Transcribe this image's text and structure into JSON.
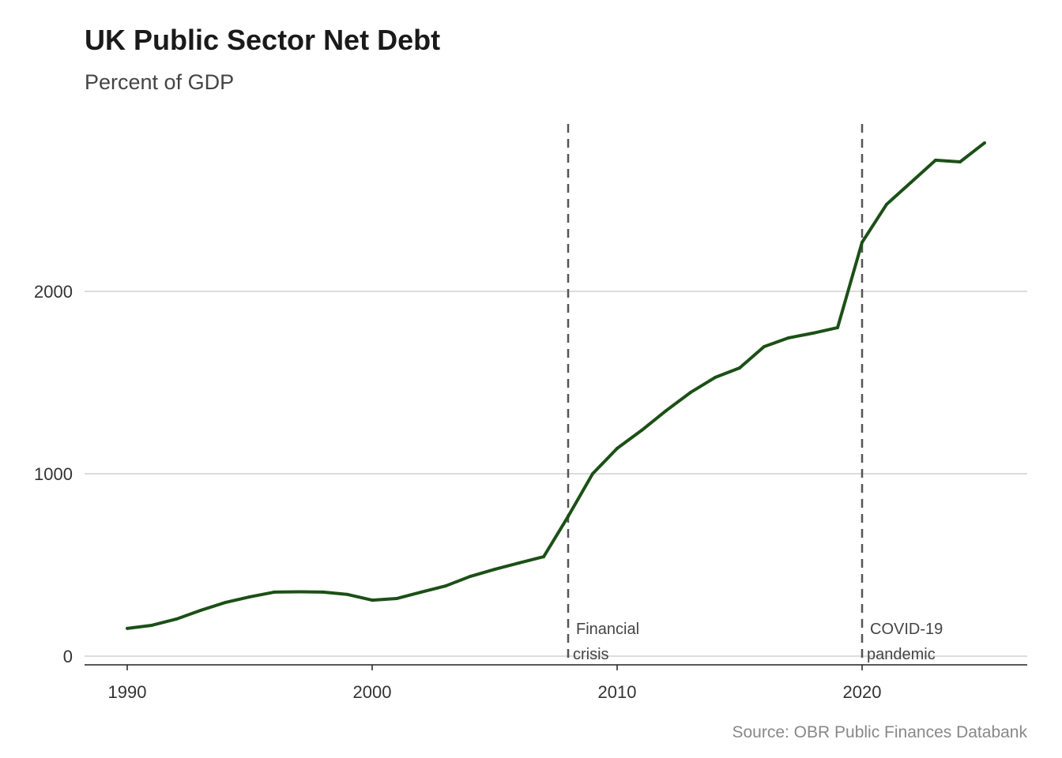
{
  "chart_data": {
    "type": "line",
    "title": "UK Public Sector Net Debt",
    "subtitle": "Percent of GDP",
    "source": "Source: OBR Public Finances Databank",
    "xlabel": "",
    "ylabel": "",
    "xlim": [
      1988.3,
      2026.7
    ],
    "ylim": [
      -50,
      2950
    ],
    "x_ticks": [
      1990,
      2000,
      2010,
      2020
    ],
    "x_tick_labels": [
      "1990",
      "2000",
      "2010",
      "2020"
    ],
    "y_ticks": [
      0,
      1000,
      2000
    ],
    "y_tick_labels": [
      "0",
      "1000",
      "2000"
    ],
    "grid": "horizontal",
    "series": [
      {
        "name": "Net debt",
        "color": "#1b5016",
        "x": [
          1990,
          1991,
          1992,
          1993,
          1994,
          1995,
          1996,
          1997,
          1998,
          1999,
          2000,
          2001,
          2002,
          2003,
          2004,
          2005,
          2006,
          2007,
          2008,
          2009,
          2010,
          2011,
          2012,
          2013,
          2014,
          2015,
          2016,
          2017,
          2018,
          2019,
          2020,
          2021,
          2022,
          2023,
          2024,
          2025
        ],
        "values": [
          152,
          169,
          203,
          251,
          294,
          325,
          351,
          353,
          351,
          338,
          307,
          316,
          351,
          385,
          437,
          476,
          511,
          545,
          766,
          1000,
          1139,
          1238,
          1346,
          1446,
          1528,
          1580,
          1697,
          1745,
          1771,
          1801,
          2269,
          2477,
          2598,
          2719,
          2710,
          2814
        ]
      }
    ],
    "annotations": [
      {
        "x": 2008,
        "line1": "Financial",
        "line2": "crisis"
      },
      {
        "x": 2020,
        "line1": "COVID-19",
        "line2": "pandemic"
      }
    ]
  }
}
